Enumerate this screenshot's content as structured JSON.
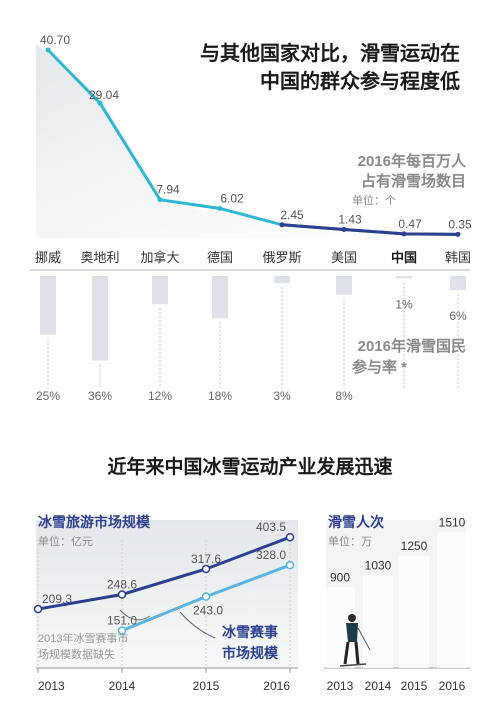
{
  "colors": {
    "cyan": "#2fb6d3",
    "navy": "#2e3f8f",
    "blue_mid": "#4a86c8",
    "light_blue": "#5ab4dc",
    "text_dark": "#1a1a1a",
    "text_gray": "#8a8a8a",
    "bar_fill": "#dfe2e8",
    "snow_bg": "#eef0f2"
  },
  "top_title": {
    "line1": "与其他国家对比，滑雪运动在",
    "line2": "中国的群众参与程度低"
  },
  "bottom_title": "近年来中国冰雪运动产业发展迅速",
  "chart_data": [
    {
      "type": "line",
      "title": "2016年每百万人占有滑雪场数目",
      "title_lines": [
        "2016年每百万人",
        "占有滑雪场数目"
      ],
      "unit": "单位：个",
      "categories": [
        "挪威",
        "奥地利",
        "加拿大",
        "德国",
        "俄罗斯",
        "美国",
        "中国",
        "韩国"
      ],
      "values": [
        40.7,
        29.04,
        7.94,
        6.02,
        2.45,
        1.43,
        0.47,
        0.35
      ],
      "value_labels": [
        "40.70",
        "29.04",
        "7.94",
        "6.02",
        "2.45",
        "1.43",
        "0.47",
        "0.35"
      ],
      "highlight_category": "中国",
      "ylim": [
        0,
        42
      ]
    },
    {
      "type": "bar",
      "orientation": "downward",
      "title": "2016年滑雪国民参与率 *",
      "title_lines": [
        "2016年滑雪国民",
        "参与率 *"
      ],
      "categories": [
        "挪威",
        "奥地利",
        "加拿大",
        "德国",
        "俄罗斯",
        "美国",
        "中国",
        "韩国"
      ],
      "values": [
        25,
        36,
        12,
        18,
        3,
        8,
        1,
        6
      ],
      "value_labels": [
        "25%",
        "36%",
        "12%",
        "18%",
        "3%",
        "8%",
        "1%",
        "6%"
      ],
      "ylim": [
        0,
        40
      ]
    },
    {
      "type": "line",
      "title": "冰雪旅游市场规模",
      "unit": "单位：亿元",
      "x": [
        "2013",
        "2014",
        "2015",
        "2016"
      ],
      "series": [
        {
          "name": "冰雪旅游市场规模",
          "values": [
            209.3,
            248.6,
            317.6,
            403.5
          ],
          "labels": [
            "209.3",
            "248.6",
            "317.6",
            "403.5"
          ]
        },
        {
          "name": "冰雪赛事市场规模",
          "values": [
            null,
            151.0,
            243.0,
            328.0
          ],
          "labels": [
            "",
            "151.0",
            "243.0",
            "328.0"
          ]
        }
      ],
      "series2_label_lines": [
        "冰雪赛事",
        "市场规模"
      ],
      "annotation_lines": [
        "2013年冰雪赛事市",
        "场规模数据缺失"
      ],
      "ylim": [
        50,
        450
      ]
    },
    {
      "type": "bar",
      "title": "滑雪人次",
      "unit": "单位：万",
      "categories": [
        "2013",
        "2014",
        "2015",
        "2016"
      ],
      "values": [
        900,
        1030,
        1250,
        1510
      ],
      "value_labels": [
        "900",
        "1030",
        "1250",
        "1510"
      ],
      "ylim": [
        0,
        1650
      ]
    }
  ]
}
